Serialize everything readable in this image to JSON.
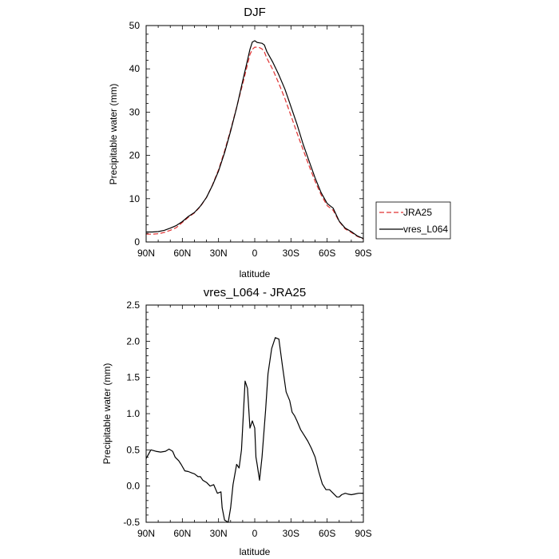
{
  "chart_data": [
    {
      "type": "line",
      "title": "DJF",
      "xlabel": "latitude",
      "ylabel": "Precipitable water (mm)",
      "xlim": [
        90,
        -90
      ],
      "ylim": [
        0,
        50
      ],
      "x_ticks": [
        90,
        60,
        30,
        0,
        -30,
        -60,
        -90
      ],
      "x_tick_labels": [
        "90N",
        "60N",
        "30N",
        "0",
        "30S",
        "60S",
        "90S"
      ],
      "y_ticks": [
        0,
        10,
        20,
        30,
        40,
        50
      ],
      "y_tick_labels": [
        "0",
        "10",
        "20",
        "30",
        "40",
        "50"
      ],
      "grid": false,
      "legend_position": "outside-right-bottom",
      "series": [
        {
          "name": "JRA25",
          "color": "#e03030",
          "dash": "dashed",
          "x": [
            90,
            85,
            80,
            75,
            70,
            65,
            60,
            55,
            50,
            45,
            40,
            35,
            30,
            25,
            20,
            15,
            10,
            6,
            4,
            2,
            0,
            -2,
            -4,
            -6,
            -8,
            -10,
            -15,
            -20,
            -25,
            -30,
            -35,
            -40,
            -45,
            -50,
            -55,
            -60,
            -65,
            -70,
            -75,
            -80,
            -85,
            -90
          ],
          "y": [
            1.8,
            1.8,
            1.9,
            2.2,
            2.7,
            3.3,
            4.5,
            5.7,
            6.7,
            8.2,
            10.3,
            13.2,
            16.7,
            21.0,
            25.9,
            31.1,
            36.5,
            41.0,
            43.3,
            44.5,
            45.0,
            45.0,
            44.9,
            44.6,
            43.9,
            42.5,
            39.8,
            36.6,
            33.1,
            29.2,
            25.2,
            21.4,
            17.6,
            14.0,
            10.9,
            8.4,
            7.3,
            4.7,
            3.0,
            2.2,
            1.3,
            0.7
          ]
        },
        {
          "name": "vres_L064",
          "color": "#000000",
          "dash": "solid",
          "x": [
            90,
            85,
            80,
            75,
            70,
            65,
            60,
            55,
            50,
            45,
            40,
            35,
            30,
            25,
            20,
            15,
            10,
            6,
            4,
            2,
            0,
            -2,
            -4,
            -6,
            -8,
            -10,
            -15,
            -20,
            -25,
            -30,
            -35,
            -40,
            -45,
            -50,
            -55,
            -60,
            -65,
            -70,
            -75,
            -80,
            -85,
            -90
          ],
          "y": [
            2.3,
            2.3,
            2.4,
            2.7,
            3.2,
            3.8,
            4.7,
            5.9,
            6.8,
            8.3,
            10.3,
            13.1,
            16.4,
            20.6,
            25.6,
            31.0,
            37.2,
            42.0,
            44.5,
            46.2,
            46.5,
            46.1,
            46.0,
            45.9,
            45.5,
            44.0,
            41.5,
            38.6,
            35.3,
            31.3,
            27.2,
            22.7,
            18.7,
            14.8,
            11.4,
            8.9,
            7.8,
            4.8,
            3.2,
            2.4,
            1.4,
            0.8
          ]
        }
      ]
    },
    {
      "type": "line",
      "title": "vres_L064 - JRA25",
      "xlabel": "latitude",
      "ylabel": "Precipitable water (mm)",
      "xlim": [
        90,
        -90
      ],
      "ylim": [
        -0.5,
        2.5
      ],
      "x_ticks": [
        90,
        60,
        30,
        0,
        -30,
        -60,
        -90
      ],
      "x_tick_labels": [
        "90N",
        "60N",
        "30N",
        "0",
        "30S",
        "60S",
        "90S"
      ],
      "y_ticks": [
        -0.5,
        0.0,
        0.5,
        1.0,
        1.5,
        2.0,
        2.5
      ],
      "y_tick_labels": [
        "-0.5",
        "0.0",
        "0.5",
        "1.0",
        "1.5",
        "2.0",
        "2.5"
      ],
      "grid": false,
      "series": [
        {
          "name": "",
          "color": "#000000",
          "dash": "solid",
          "x": [
            90,
            86,
            82,
            78,
            74,
            71,
            68,
            66,
            63,
            61,
            58,
            55,
            52,
            50,
            47,
            45,
            43,
            40,
            37,
            34,
            31,
            28,
            27,
            25,
            22,
            20,
            18,
            15,
            13,
            11,
            8,
            6,
            4,
            2,
            0,
            -1,
            -2,
            -4,
            -6,
            -9,
            -11,
            -14,
            -17,
            -20,
            -23,
            -26,
            -29,
            -31,
            -33,
            -35,
            -38,
            -41,
            -44,
            -47,
            -50,
            -53,
            -56,
            -59,
            -62,
            -65,
            -68,
            -70,
            -72,
            -75,
            -77,
            -80,
            -83,
            -86,
            -90
          ],
          "y": [
            0.38,
            0.5,
            0.48,
            0.47,
            0.48,
            0.51,
            0.48,
            0.4,
            0.35,
            0.3,
            0.21,
            0.2,
            0.18,
            0.17,
            0.13,
            0.13,
            0.08,
            0.05,
            0.0,
            0.02,
            -0.1,
            -0.08,
            -0.3,
            -0.47,
            -0.5,
            -0.3,
            0.02,
            0.3,
            0.25,
            0.5,
            1.45,
            1.35,
            0.8,
            0.9,
            0.8,
            0.4,
            0.3,
            0.08,
            0.4,
            1.05,
            1.55,
            1.9,
            2.05,
            2.03,
            1.65,
            1.3,
            1.18,
            1.02,
            0.97,
            0.9,
            0.78,
            0.7,
            0.62,
            0.52,
            0.4,
            0.2,
            0.03,
            -0.05,
            -0.05,
            -0.1,
            -0.15,
            -0.15,
            -0.12,
            -0.1,
            -0.11,
            -0.12,
            -0.11,
            -0.1,
            -0.1
          ]
        }
      ]
    }
  ]
}
